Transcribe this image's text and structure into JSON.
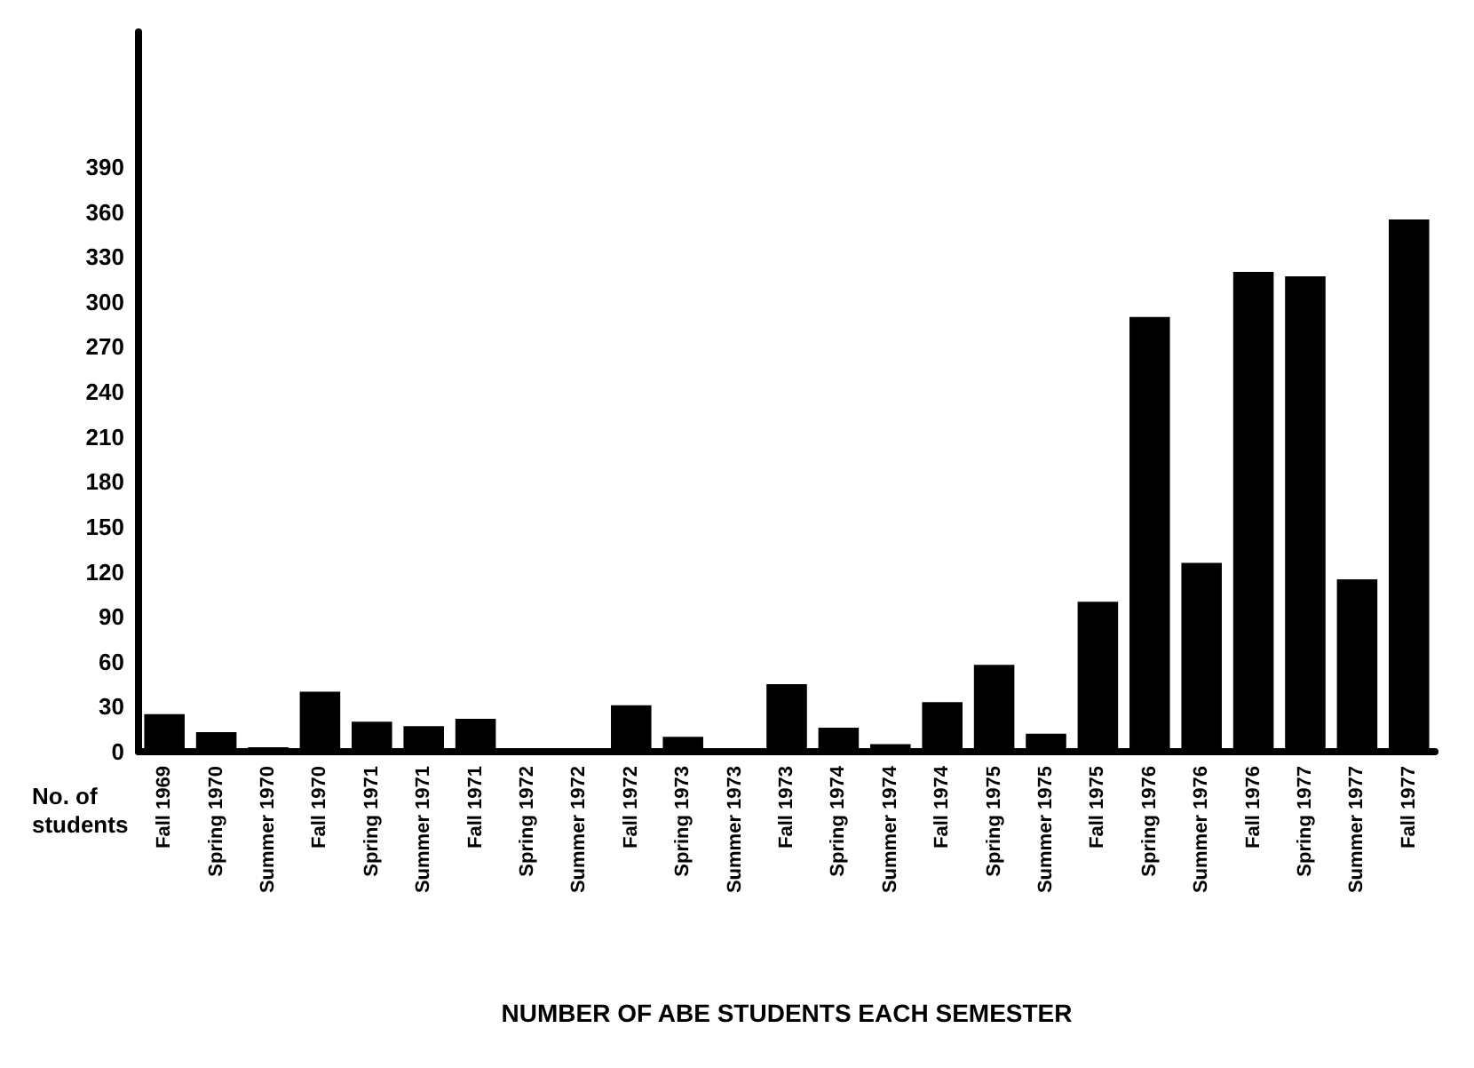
{
  "chart_data": {
    "type": "bar",
    "xlabel": "NUMBER OF ABE STUDENTS EACH SEMESTER",
    "ylabel": "No. of students",
    "categories": [
      "Fall 1969",
      "Spring 1970",
      "Summer 1970",
      "Fall 1970",
      "Spring 1971",
      "Summer 1971",
      "Fall 1971",
      "Spring 1972",
      "Summer 1972",
      "Fall 1972",
      "Spring 1973",
      "Summer 1973",
      "Fall 1973",
      "Spring 1974",
      "Summer 1974",
      "Fall 1974",
      "Spring 1975",
      "Summer 1975",
      "Fall 1975",
      "Spring 1976",
      "Summer 1976",
      "Fall 1976",
      "Spring 1977",
      "Summer 1977",
      "Fall 1977"
    ],
    "values": [
      25,
      13,
      3,
      40,
      20,
      17,
      22,
      0,
      0,
      31,
      10,
      0,
      45,
      16,
      5,
      33,
      58,
      12,
      100,
      290,
      126,
      320,
      317,
      115,
      355
    ],
    "color": "#000000",
    "ylim": [
      0,
      480
    ],
    "yticks": [
      0,
      30,
      60,
      90,
      120,
      150,
      180,
      210,
      240,
      270,
      300,
      330,
      360,
      390
    ],
    "grid": false
  }
}
